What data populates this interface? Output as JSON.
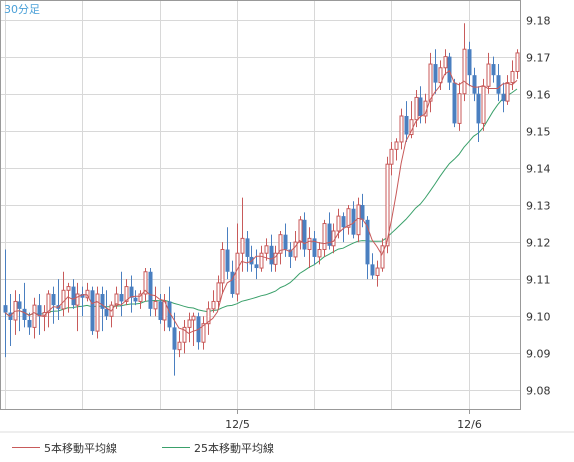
{
  "chart_data": {
    "type": "candlestick",
    "interval_label": "30分足",
    "ylim": [
      9.075,
      9.185
    ],
    "yticks": [
      "9.18",
      "9.17",
      "9.16",
      "9.15",
      "9.14",
      "9.13",
      "9.12",
      "9.11",
      "9.10",
      "9.09",
      "9.08"
    ],
    "xticks": [
      {
        "label": "12/5",
        "index": 48
      },
      {
        "label": "12/6",
        "index": 96
      }
    ],
    "legend": [
      {
        "name": "5本移動平均線",
        "color": "#c85a5a"
      },
      {
        "name": "25本移動平均線",
        "color": "#3aa06a"
      }
    ],
    "colors": {
      "up": "#c85a5a",
      "down": "#4a7fc0",
      "ma5": "#c85a5a",
      "ma25": "#3aa06a",
      "grid": "#d8d8d8",
      "frame": "#999999",
      "label": "#4aa0d8"
    },
    "candles": [
      [
        9.103,
        9.101,
        9.118,
        9.089
      ],
      [
        9.101,
        9.099,
        9.106,
        9.092
      ],
      [
        9.099,
        9.104,
        9.107,
        9.095
      ],
      [
        9.104,
        9.102,
        9.106,
        9.096
      ],
      [
        9.102,
        9.099,
        9.109,
        9.097
      ],
      [
        9.099,
        9.097,
        9.101,
        9.095
      ],
      [
        9.097,
        9.103,
        9.105,
        9.094
      ],
      [
        9.103,
        9.1,
        9.106,
        9.095
      ],
      [
        9.1,
        9.101,
        9.103,
        9.096
      ],
      [
        9.101,
        9.106,
        9.107,
        9.097
      ],
      [
        9.106,
        9.103,
        9.108,
        9.098
      ],
      [
        9.103,
        9.102,
        9.11,
        9.099
      ],
      [
        9.102,
        9.107,
        9.112,
        9.1
      ],
      [
        9.107,
        9.108,
        9.109,
        9.101
      ],
      [
        9.108,
        9.103,
        9.11,
        9.102
      ],
      [
        9.103,
        9.106,
        9.109,
        9.096
      ],
      [
        9.106,
        9.105,
        9.108,
        9.1
      ],
      [
        9.105,
        9.107,
        9.109,
        9.104
      ],
      [
        9.107,
        9.096,
        9.108,
        9.095
      ],
      [
        9.096,
        9.106,
        9.108,
        9.094
      ],
      [
        9.106,
        9.102,
        9.108,
        9.096
      ],
      [
        9.102,
        9.1,
        9.107,
        9.099
      ],
      [
        9.1,
        9.103,
        9.104,
        9.097
      ],
      [
        9.103,
        9.106,
        9.108,
        9.102
      ],
      [
        9.106,
        9.104,
        9.112,
        9.1
      ],
      [
        9.104,
        9.108,
        9.11,
        9.103
      ],
      [
        9.108,
        9.105,
        9.111,
        9.101
      ],
      [
        9.105,
        9.104,
        9.107,
        9.103
      ],
      [
        9.104,
        9.106,
        9.107,
        9.102
      ],
      [
        9.106,
        9.112,
        9.113,
        9.104
      ],
      [
        9.112,
        9.102,
        9.113,
        9.1
      ],
      [
        9.102,
        9.104,
        9.108,
        9.1
      ],
      [
        9.104,
        9.099,
        9.106,
        9.098
      ],
      [
        9.099,
        9.104,
        9.106,
        9.096
      ],
      [
        9.104,
        9.097,
        9.108,
        9.096
      ],
      [
        9.097,
        9.091,
        9.101,
        9.084
      ],
      [
        9.091,
        9.093,
        9.096,
        9.089
      ],
      [
        9.093,
        9.097,
        9.099,
        9.09
      ],
      [
        9.097,
        9.099,
        9.101,
        9.093
      ],
      [
        9.099,
        9.1,
        9.101,
        9.092
      ],
      [
        9.1,
        9.093,
        9.101,
        9.091
      ],
      [
        9.093,
        9.098,
        9.1,
        9.091
      ],
      [
        9.098,
        9.102,
        9.104,
        9.095
      ],
      [
        9.102,
        9.104,
        9.107,
        9.101
      ],
      [
        9.104,
        9.109,
        9.111,
        9.102
      ],
      [
        9.109,
        9.118,
        9.12,
        9.106
      ],
      [
        9.118,
        9.112,
        9.124,
        9.11
      ],
      [
        9.112,
        9.106,
        9.115,
        9.105
      ],
      [
        9.106,
        9.117,
        9.125,
        9.104
      ],
      [
        9.117,
        9.121,
        9.132,
        9.112
      ],
      [
        9.121,
        9.116,
        9.123,
        9.112
      ],
      [
        9.116,
        9.114,
        9.119,
        9.112
      ],
      [
        9.114,
        9.113,
        9.118,
        9.11
      ],
      [
        9.113,
        9.117,
        9.119,
        9.112
      ],
      [
        9.117,
        9.119,
        9.121,
        9.115
      ],
      [
        9.119,
        9.114,
        9.122,
        9.112
      ],
      [
        9.114,
        9.117,
        9.119,
        9.112
      ],
      [
        9.117,
        9.122,
        9.123,
        9.114
      ],
      [
        9.122,
        9.118,
        9.125,
        9.116
      ],
      [
        9.118,
        9.116,
        9.12,
        9.113
      ],
      [
        9.116,
        9.12,
        9.123,
        9.115
      ],
      [
        9.12,
        9.126,
        9.127,
        9.118
      ],
      [
        9.126,
        9.118,
        9.128,
        9.116
      ],
      [
        9.118,
        9.121,
        9.124,
        9.113
      ],
      [
        9.121,
        9.116,
        9.123,
        9.114
      ],
      [
        9.116,
        9.118,
        9.12,
        9.114
      ],
      [
        9.118,
        9.125,
        9.126,
        9.116
      ],
      [
        9.125,
        9.119,
        9.128,
        9.118
      ],
      [
        9.119,
        9.123,
        9.125,
        9.117
      ],
      [
        9.123,
        9.127,
        9.129,
        9.121
      ],
      [
        9.127,
        9.124,
        9.128,
        9.12
      ],
      [
        9.124,
        9.129,
        9.13,
        9.122
      ],
      [
        9.129,
        9.122,
        9.131,
        9.121
      ],
      [
        9.122,
        9.13,
        9.132,
        9.12
      ],
      [
        9.13,
        9.126,
        9.133,
        9.124
      ],
      [
        9.126,
        9.114,
        9.127,
        9.11
      ],
      [
        9.114,
        9.111,
        9.117,
        9.11
      ],
      [
        9.111,
        9.113,
        9.115,
        9.108
      ],
      [
        9.113,
        9.119,
        9.121,
        9.112
      ],
      [
        9.119,
        9.141,
        9.143,
        9.117
      ],
      [
        9.141,
        9.145,
        9.147,
        9.138
      ],
      [
        9.145,
        9.147,
        9.148,
        9.142
      ],
      [
        9.147,
        9.154,
        9.156,
        9.145
      ],
      [
        9.154,
        9.149,
        9.158,
        9.147
      ],
      [
        9.149,
        9.153,
        9.158,
        9.148
      ],
      [
        9.153,
        9.159,
        9.161,
        9.151
      ],
      [
        9.159,
        9.154,
        9.162,
        9.152
      ],
      [
        9.154,
        9.158,
        9.16,
        9.152
      ],
      [
        9.158,
        9.168,
        9.171,
        9.155
      ],
      [
        9.168,
        9.163,
        9.172,
        9.16
      ],
      [
        9.163,
        9.167,
        9.169,
        9.161
      ],
      [
        9.167,
        9.17,
        9.172,
        9.165
      ],
      [
        9.17,
        9.163,
        9.171,
        9.161
      ],
      [
        9.163,
        9.152,
        9.164,
        9.151
      ],
      [
        9.152,
        9.16,
        9.163,
        9.15
      ],
      [
        9.16,
        9.172,
        9.179,
        9.158
      ],
      [
        9.172,
        9.165,
        9.174,
        9.162
      ],
      [
        9.165,
        9.16,
        9.167,
        9.158
      ],
      [
        9.16,
        9.152,
        9.162,
        9.147
      ],
      [
        9.152,
        9.162,
        9.164,
        9.15
      ],
      [
        9.162,
        9.168,
        9.171,
        9.16
      ],
      [
        9.168,
        9.165,
        9.17,
        9.163
      ],
      [
        9.165,
        9.16,
        9.168,
        9.158
      ],
      [
        9.16,
        9.158,
        9.163,
        9.155
      ],
      [
        9.158,
        9.163,
        9.165,
        9.157
      ],
      [
        9.163,
        9.166,
        9.169,
        9.161
      ],
      [
        9.166,
        9.171,
        9.172,
        9.164
      ]
    ]
  }
}
